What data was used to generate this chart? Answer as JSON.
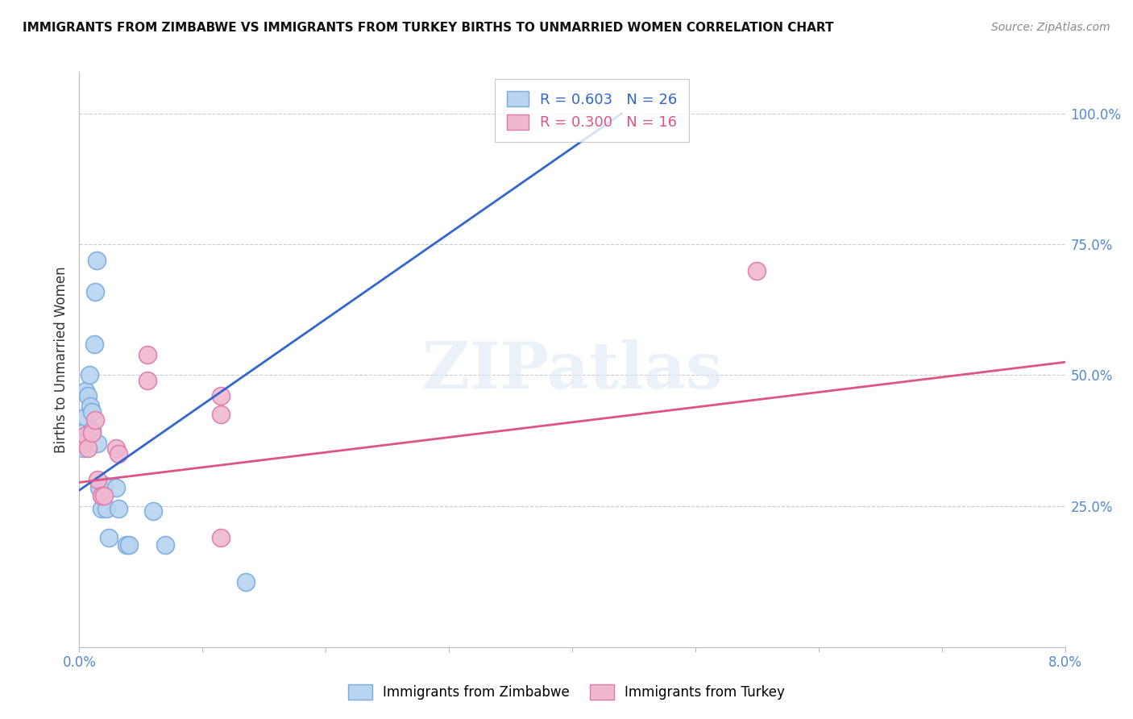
{
  "title": "IMMIGRANTS FROM ZIMBABWE VS IMMIGRANTS FROM TURKEY BIRTHS TO UNMARRIED WOMEN CORRELATION CHART",
  "source": "Source: ZipAtlas.com",
  "ylabel": "Births to Unmarried Women",
  "ylabel_ticks": [
    "25.0%",
    "50.0%",
    "75.0%",
    "100.0%"
  ],
  "ylabel_tick_vals": [
    0.25,
    0.5,
    0.75,
    1.0
  ],
  "x_min": 0.0,
  "x_max": 0.08,
  "y_min": -0.02,
  "y_max": 1.08,
  "watermark": "ZIPatlas",
  "zimbabwe_color": "#b8d4f0",
  "turkey_color": "#f0b8d0",
  "zimbabwe_edge": "#7aaadd",
  "turkey_edge": "#dd7aaa",
  "line_blue": "#3366cc",
  "line_pink": "#dd5588",
  "zimbabwe_x": [
    0.0003,
    0.0003,
    0.0005,
    0.0005,
    0.0006,
    0.0007,
    0.0008,
    0.0009,
    0.001,
    0.001,
    0.0012,
    0.0013,
    0.0014,
    0.0015,
    0.0016,
    0.0018,
    0.002,
    0.0022,
    0.0024,
    0.003,
    0.0032,
    0.0038,
    0.004,
    0.006,
    0.007,
    0.0135
  ],
  "zimbabwe_y": [
    0.36,
    0.39,
    0.42,
    0.47,
    0.38,
    0.46,
    0.5,
    0.44,
    0.43,
    0.395,
    0.56,
    0.66,
    0.72,
    0.37,
    0.285,
    0.245,
    0.29,
    0.245,
    0.19,
    0.285,
    0.245,
    0.175,
    0.175,
    0.24,
    0.175,
    0.105
  ],
  "turkey_x": [
    0.0003,
    0.0005,
    0.0007,
    0.001,
    0.0013,
    0.0015,
    0.0018,
    0.002,
    0.003,
    0.0032,
    0.0115,
    0.0115,
    0.055,
    0.0115,
    0.0055,
    0.0055
  ],
  "turkey_y": [
    0.37,
    0.385,
    0.36,
    0.39,
    0.415,
    0.3,
    0.27,
    0.27,
    0.36,
    0.35,
    0.46,
    0.425,
    0.7,
    0.19,
    0.54,
    0.49
  ],
  "blue_line_x": [
    0.0,
    0.044
  ],
  "blue_line_y": [
    0.28,
    1.0
  ],
  "pink_line_x": [
    0.0,
    0.08
  ],
  "pink_line_y": [
    0.295,
    0.525
  ]
}
